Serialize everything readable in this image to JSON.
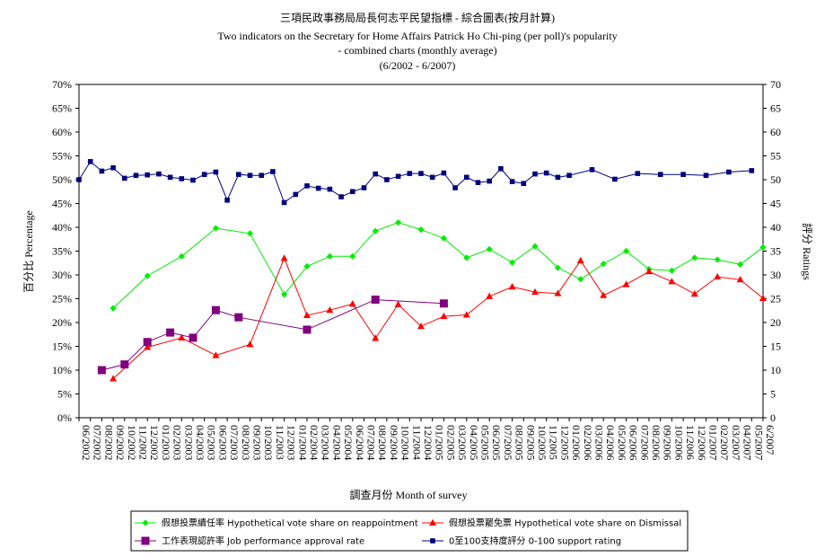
{
  "chart_data": {
    "type": "line",
    "title_lines": [
      "三項民政事務局局長何志平民望指標 - 綜合圖表(按月計算)",
      "Two indicators on the Secretary for Home Affairs Patrick Ho Chi-ping (per poll)'s popularity",
      "- combined charts (monthly average)",
      "(6/2002 - 6/2007)"
    ],
    "xlabel": "調查月份  Month of survey",
    "ylabel_left": "百分比  Percentage",
    "ylabel_right": "評分  Ratings",
    "y_left": {
      "min": 0,
      "max": 70,
      "step": 5,
      "unit": "%"
    },
    "y_right": {
      "min": 0,
      "max": 70,
      "step": 5
    },
    "grid": false,
    "legend_position": "bottom",
    "categories": [
      "06/2002",
      "07/2002",
      "08/2002",
      "09/2002",
      "10/2002",
      "11/2002",
      "12/2002",
      "01/2003",
      "02/2003",
      "03/2003",
      "04/2003",
      "05/2003",
      "06/2003",
      "07/2003",
      "08/2003",
      "09/2003",
      "10/2003",
      "11/2003",
      "12/2003",
      "01/2004",
      "02/2004",
      "03/2004",
      "04/2004",
      "05/2004",
      "06/2004",
      "07/2004",
      "08/2004",
      "09/2004",
      "10/2004",
      "11/2004",
      "12/2004",
      "01/2005",
      "02/2005",
      "03/2005",
      "04/2005",
      "05/2005",
      "06/2005",
      "07/2005",
      "08/2005",
      "09/2005",
      "10/2005",
      "11/2005",
      "12/2005",
      "01/2006",
      "02/2006",
      "03/2006",
      "04/2006",
      "05/2006",
      "06/2006",
      "07/2006",
      "08/2006",
      "09/2006",
      "10/2006",
      "11/2006",
      "12/2006",
      "01/2007",
      "02/2007",
      "03/2007",
      "04/2007",
      "05/2007",
      "6/2007"
    ],
    "series": [
      {
        "name": "假想投票續任率  Hypothetical vote share on reappointment",
        "color": "#00ee00",
        "marker": "diamond",
        "axis": "left",
        "points": [
          [
            3,
            23.0
          ],
          [
            6,
            29.8
          ],
          [
            9,
            33.9
          ],
          [
            12,
            39.8
          ],
          [
            15,
            38.7
          ],
          [
            18,
            25.9
          ],
          [
            20,
            31.8
          ],
          [
            22,
            33.9
          ],
          [
            24,
            33.9
          ],
          [
            26,
            39.2
          ],
          [
            28,
            41.0
          ],
          [
            30,
            39.5
          ],
          [
            32,
            37.7
          ],
          [
            34,
            33.6
          ],
          [
            36,
            35.4
          ],
          [
            38,
            32.6
          ],
          [
            40,
            36.0
          ],
          [
            42,
            31.5
          ],
          [
            44,
            29.1
          ],
          [
            46,
            32.3
          ],
          [
            48,
            35.0
          ],
          [
            50,
            31.2
          ],
          [
            52,
            30.9
          ],
          [
            54,
            33.6
          ],
          [
            56,
            33.2
          ],
          [
            58,
            32.2
          ],
          [
            60,
            35.8
          ]
        ]
      },
      {
        "name": "假想投票罷免票  Hypothetical vote share on Dismissal",
        "color": "#ff0000",
        "marker": "triangle",
        "axis": "left",
        "points": [
          [
            3,
            8.2
          ],
          [
            6,
            14.8
          ],
          [
            9,
            16.8
          ],
          [
            12,
            13.1
          ],
          [
            15,
            15.4
          ],
          [
            18,
            33.5
          ],
          [
            20,
            21.5
          ],
          [
            22,
            22.6
          ],
          [
            24,
            23.9
          ],
          [
            26,
            16.7
          ],
          [
            28,
            23.8
          ],
          [
            30,
            19.2
          ],
          [
            32,
            21.3
          ],
          [
            34,
            21.6
          ],
          [
            36,
            25.5
          ],
          [
            38,
            27.5
          ],
          [
            40,
            26.4
          ],
          [
            42,
            26.1
          ],
          [
            44,
            33.0
          ],
          [
            46,
            25.7
          ],
          [
            48,
            28.0
          ],
          [
            50,
            30.7
          ],
          [
            52,
            28.6
          ],
          [
            54,
            26.0
          ],
          [
            56,
            29.6
          ],
          [
            58,
            29.0
          ],
          [
            60,
            25.1
          ]
        ]
      },
      {
        "name": "工作表現認許率  Job performance approval rate",
        "color": "#800080",
        "marker": "square",
        "axis": "left",
        "points": [
          [
            2,
            10.0
          ],
          [
            4,
            11.2
          ],
          [
            6,
            15.9
          ],
          [
            8,
            17.9
          ],
          [
            10,
            16.8
          ],
          [
            12,
            22.6
          ],
          [
            14,
            21.1
          ],
          [
            20,
            18.5
          ],
          [
            26,
            24.8
          ],
          [
            32,
            24.0
          ]
        ]
      },
      {
        "name": "0至100支持度評分  0-100 support rating",
        "color": "#000080",
        "marker": "square",
        "axis": "right",
        "points": [
          [
            0,
            50.0
          ],
          [
            1,
            53.8
          ],
          [
            2,
            51.8
          ],
          [
            3,
            52.5
          ],
          [
            4,
            50.3
          ],
          [
            5,
            50.9
          ],
          [
            6,
            51.0
          ],
          [
            7,
            51.2
          ],
          [
            8,
            50.5
          ],
          [
            9,
            50.2
          ],
          [
            10,
            49.9
          ],
          [
            11,
            51.1
          ],
          [
            12,
            51.6
          ],
          [
            13,
            45.7
          ],
          [
            14,
            51.1
          ],
          [
            15,
            50.9
          ],
          [
            16,
            50.9
          ],
          [
            17,
            51.7
          ],
          [
            18,
            45.2
          ],
          [
            19,
            46.9
          ],
          [
            20,
            48.7
          ],
          [
            21,
            48.2
          ],
          [
            22,
            48.0
          ],
          [
            23,
            46.4
          ],
          [
            24,
            47.5
          ],
          [
            25,
            48.3
          ],
          [
            26,
            51.2
          ],
          [
            27,
            50.0
          ],
          [
            28,
            50.7
          ],
          [
            29,
            51.3
          ],
          [
            30,
            51.3
          ],
          [
            31,
            50.5
          ],
          [
            32,
            51.4
          ],
          [
            33,
            48.3
          ],
          [
            34,
            50.5
          ],
          [
            35,
            49.4
          ],
          [
            36,
            49.7
          ],
          [
            37,
            52.3
          ],
          [
            38,
            49.6
          ],
          [
            39,
            49.2
          ],
          [
            40,
            51.2
          ],
          [
            41,
            51.4
          ],
          [
            42,
            50.5
          ],
          [
            43,
            50.9
          ],
          [
            45,
            52.1
          ],
          [
            47,
            50.1
          ],
          [
            49,
            51.3
          ],
          [
            51,
            51.1
          ],
          [
            53,
            51.1
          ],
          [
            55,
            50.9
          ],
          [
            57,
            51.6
          ],
          [
            59,
            51.9
          ]
        ]
      }
    ]
  }
}
